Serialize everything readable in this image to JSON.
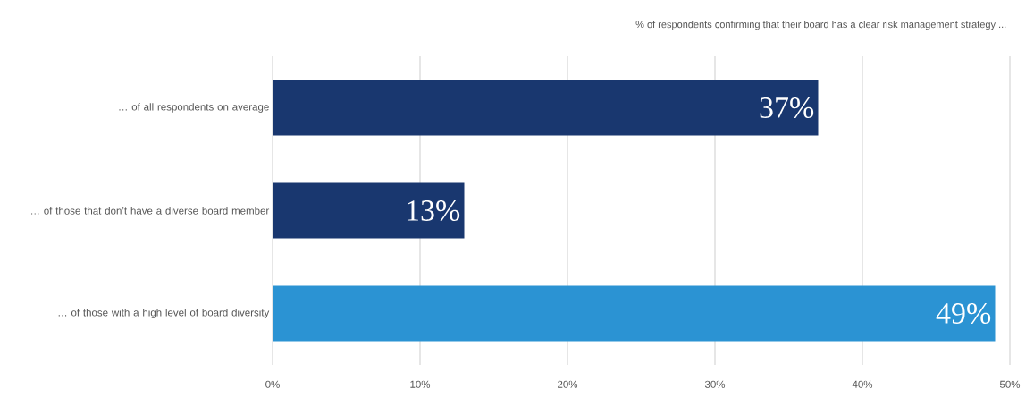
{
  "chart_data": {
    "type": "bar",
    "orientation": "horizontal",
    "title": "% of respondents confirming that their board has a clear risk management strategy ...",
    "categories": [
      "… of all respondents on average",
      "… of those that don’t have a diverse board member",
      "… of those with a high level of board diversity"
    ],
    "values": [
      37,
      13,
      49
    ],
    "colors": [
      "#19376f",
      "#19376f",
      "#2b93d3"
    ],
    "value_labels": [
      "37%",
      "13%",
      "49%"
    ],
    "xlim": [
      0,
      50
    ],
    "xticks": [
      {
        "value": 0,
        "label": "0%"
      },
      {
        "value": 10,
        "label": "10%"
      },
      {
        "value": 20,
        "label": "20%"
      },
      {
        "value": 30,
        "label": "30%"
      },
      {
        "value": 40,
        "label": "40%"
      },
      {
        "value": 50,
        "label": "50%"
      }
    ],
    "grid": "x"
  }
}
